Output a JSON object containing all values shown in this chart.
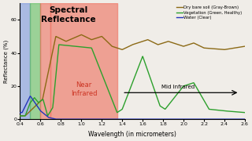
{
  "title": "Spectral\nReflectance",
  "xlabel": "Wavelength (in micrometers)",
  "ylabel": "Reflectance (%)",
  "xlim": [
    0.4,
    2.6
  ],
  "ylim": [
    0,
    70
  ],
  "yticks": [
    0,
    20,
    40,
    60
  ],
  "xticks": [
    0.4,
    0.6,
    0.8,
    1.0,
    1.2,
    1.4,
    1.6,
    1.8,
    2.0,
    2.2,
    2.4,
    2.6
  ],
  "bg_color": "#f0ede8",
  "color_soil": "#8B6914",
  "color_veg": "#2ca02c",
  "color_water": "#2233bb",
  "legend_soil": "Dry bare soil (Gray-Brown)",
  "legend_veg": "Vegetation (Green, Healthy)",
  "legend_water": "Water (Clear)",
  "band_NIR_label": "Near\nInfrared",
  "band_MIR_label": "Mid Infrared",
  "blue_band": [
    0.4,
    0.5
  ],
  "green_band": [
    0.5,
    0.6
  ],
  "red_band": [
    0.6,
    0.7
  ],
  "nir_band": [
    0.7,
    1.35
  ],
  "blue_color": "#6688dd",
  "green_color": "#55bb55",
  "red_color": "#ee6655",
  "nir_color": "#ee7766"
}
